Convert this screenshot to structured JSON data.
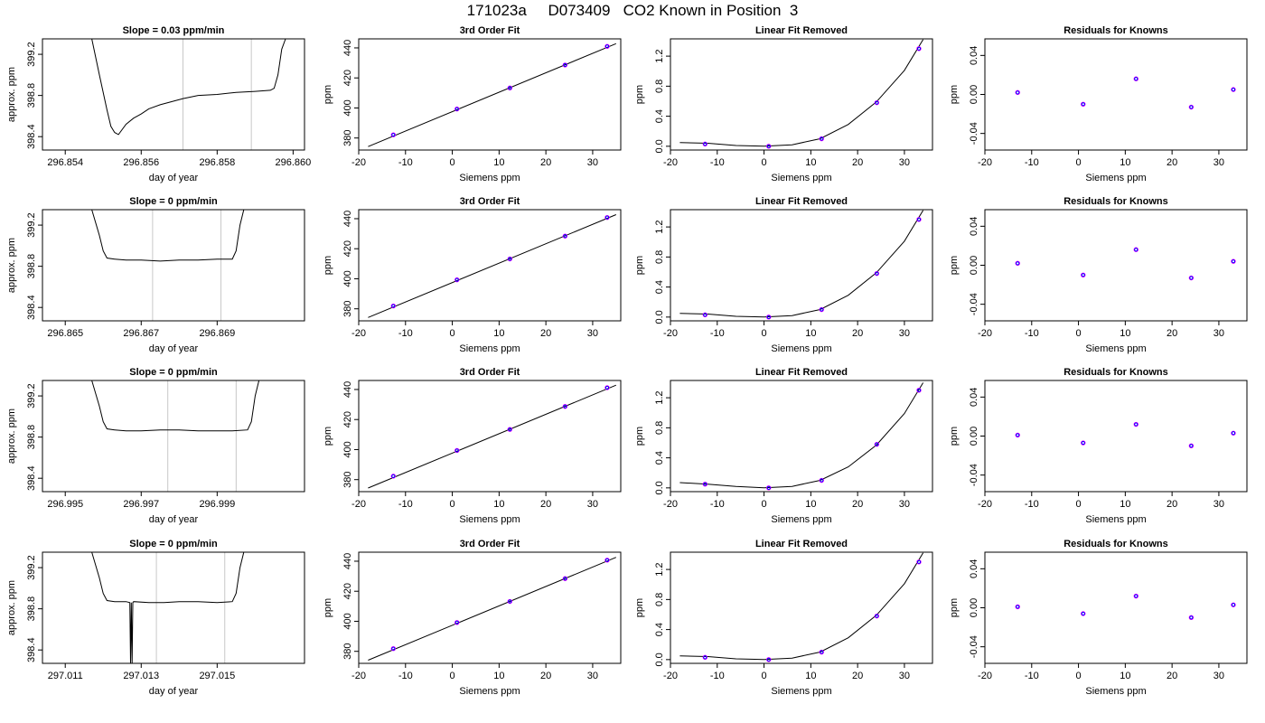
{
  "figure": {
    "title": "171023a     D073409   CO2 Known in Position  3"
  },
  "labels": {
    "day_of_year": "day of year",
    "approx_ppm": "approx. ppm",
    "ppm": "ppm",
    "siemens_ppm": "Siemens ppm",
    "third_order_fit": "3rd Order Fit",
    "linear_fit_removed": "Linear Fit Removed",
    "residuals_for_knowns": "Residuals for Knowns"
  },
  "chart_data": [
    {
      "row": 0,
      "col": 0,
      "type": "line",
      "title": "Slope =  0.03  ppm/min",
      "xlabel": "day of year",
      "ylabel": "approx. ppm",
      "xlim": [
        296.8534,
        296.8603
      ],
      "ylim": [
        398.27,
        399.35
      ],
      "xticks": [
        296.854,
        296.856,
        296.858,
        296.86
      ],
      "xtick_labels": [
        "296.854",
        "296.856",
        "296.858",
        "296.860"
      ],
      "yticks": [
        398.4,
        398.8,
        399.2
      ],
      "ytick_labels": [
        "398.4",
        "398.8",
        "399.2"
      ],
      "vlines": [
        296.8571,
        296.8589
      ],
      "series": [
        {
          "x": [
            296.8547,
            296.8549,
            296.8551,
            296.8552,
            296.8553,
            296.8554,
            296.8556,
            296.8558,
            296.856,
            296.8562,
            296.8565,
            296.8568,
            296.8571,
            296.8575,
            296.858,
            296.8585,
            296.859,
            296.8594,
            296.8595,
            296.8596,
            296.8597,
            296.8598
          ],
          "y": [
            399.4,
            399.0,
            398.66,
            398.5,
            398.44,
            398.42,
            398.52,
            398.58,
            398.62,
            398.67,
            398.71,
            398.74,
            398.77,
            398.8,
            398.81,
            398.83,
            398.84,
            398.85,
            398.87,
            399.0,
            399.25,
            399.4
          ]
        }
      ]
    },
    {
      "row": 0,
      "col": 1,
      "type": "scatter",
      "title": "3rd Order Fit",
      "xlabel": "Siemens ppm",
      "ylabel": "ppm",
      "xlim": [
        -20,
        36
      ],
      "ylim": [
        372,
        446
      ],
      "xticks": [
        -20,
        -10,
        0,
        10,
        20,
        30
      ],
      "xtick_labels": [
        "-20",
        "-10",
        "0",
        "10",
        "20",
        "30"
      ],
      "yticks": [
        380,
        400,
        420,
        440
      ],
      "ytick_labels": [
        "380",
        "400",
        "420",
        "440"
      ],
      "points": {
        "x": [
          -12.6,
          1.0,
          12.3,
          24.1,
          33.1
        ],
        "y": [
          382.1,
          399.3,
          413.3,
          428.6,
          441.0
        ]
      },
      "fit": {
        "x": [
          -18,
          35
        ],
        "y": [
          374.3,
          442.8
        ]
      }
    },
    {
      "row": 0,
      "col": 2,
      "type": "scatter",
      "title": "Linear Fit Removed",
      "xlabel": "Siemens ppm",
      "ylabel": "ppm",
      "xlim": [
        -20,
        36
      ],
      "ylim": [
        -0.05,
        1.43
      ],
      "xticks": [
        -20,
        -10,
        0,
        10,
        20,
        30
      ],
      "xtick_labels": [
        "-20",
        "-10",
        "0",
        "10",
        "20",
        "30"
      ],
      "yticks": [
        0.0,
        0.4,
        0.8,
        1.2
      ],
      "ytick_labels": [
        "0.0",
        "0.4",
        "0.8",
        "1.2"
      ],
      "points": {
        "x": [
          -12.6,
          1.0,
          12.3,
          24.1,
          33.1
        ],
        "y": [
          0.03,
          0.0,
          0.1,
          0.58,
          1.3
        ]
      },
      "fit": {
        "x": [
          -18,
          -12,
          -6,
          0,
          6,
          12,
          18,
          24,
          30,
          34
        ],
        "y": [
          0.05,
          0.04,
          0.01,
          0.0,
          0.02,
          0.1,
          0.29,
          0.59,
          1.01,
          1.42
        ]
      }
    },
    {
      "row": 0,
      "col": 3,
      "type": "scatter",
      "title": "Residuals for Knowns",
      "xlabel": "Siemens ppm",
      "ylabel": "ppm",
      "xlim": [
        -20,
        36
      ],
      "ylim": [
        -0.057,
        0.057
      ],
      "xticks": [
        -20,
        -10,
        0,
        10,
        20,
        30
      ],
      "xtick_labels": [
        "-20",
        "-10",
        "0",
        "10",
        "20",
        "30"
      ],
      "yticks": [
        -0.04,
        0.0,
        0.04
      ],
      "ytick_labels": [
        "-0.04",
        "0.00",
        "0.04"
      ],
      "points": {
        "x": [
          -13.0,
          1.0,
          12.3,
          24.1,
          33.1
        ],
        "y": [
          0.002,
          -0.01,
          0.016,
          -0.013,
          0.005
        ]
      }
    },
    {
      "row": 1,
      "col": 0,
      "type": "line",
      "title": "Slope =  0  ppm/min",
      "xlabel": "day of year",
      "ylabel": "approx. ppm",
      "xlim": [
        296.8644,
        296.8713
      ],
      "ylim": [
        398.27,
        399.35
      ],
      "xticks": [
        296.865,
        296.867,
        296.869
      ],
      "xtick_labels": [
        "296.865",
        "296.867",
        "296.869"
      ],
      "yticks": [
        398.4,
        398.8,
        399.2
      ],
      "ytick_labels": [
        "398.4",
        "398.8",
        "399.2"
      ],
      "vlines": [
        296.8673,
        296.8691
      ],
      "series": [
        {
          "x": [
            296.8657,
            296.8659,
            296.866,
            296.8661,
            296.8663,
            296.8666,
            296.867,
            296.8675,
            296.868,
            296.8685,
            296.869,
            296.8694,
            296.8695,
            296.8696,
            296.8697
          ],
          "y": [
            399.4,
            399.1,
            398.95,
            398.88,
            398.87,
            398.86,
            398.86,
            398.85,
            398.86,
            398.86,
            398.87,
            398.87,
            398.95,
            399.2,
            399.4
          ]
        }
      ]
    },
    {
      "row": 1,
      "col": 1,
      "type": "scatter",
      "title": "3rd Order Fit",
      "xlabel": "Siemens ppm",
      "ylabel": "ppm",
      "xlim": [
        -20,
        36
      ],
      "ylim": [
        372,
        446
      ],
      "xticks": [
        -20,
        -10,
        0,
        10,
        20,
        30
      ],
      "xtick_labels": [
        "-20",
        "-10",
        "0",
        "10",
        "20",
        "30"
      ],
      "yticks": [
        380,
        400,
        420,
        440
      ],
      "ytick_labels": [
        "380",
        "400",
        "420",
        "440"
      ],
      "points": {
        "x": [
          -12.6,
          1.0,
          12.3,
          24.1,
          33.1
        ],
        "y": [
          381.9,
          399.3,
          413.2,
          428.4,
          440.8
        ]
      },
      "fit": {
        "x": [
          -18,
          35
        ],
        "y": [
          374.2,
          442.7
        ]
      }
    },
    {
      "row": 1,
      "col": 2,
      "type": "scatter",
      "title": "Linear Fit Removed",
      "xlabel": "Siemens ppm",
      "ylabel": "ppm",
      "xlim": [
        -20,
        36
      ],
      "ylim": [
        -0.05,
        1.43
      ],
      "xticks": [
        -20,
        -10,
        0,
        10,
        20,
        30
      ],
      "xtick_labels": [
        "-20",
        "-10",
        "0",
        "10",
        "20",
        "30"
      ],
      "yticks": [
        0.0,
        0.4,
        0.8,
        1.2
      ],
      "ytick_labels": [
        "0.0",
        "0.4",
        "0.8",
        "1.2"
      ],
      "points": {
        "x": [
          -12.6,
          1.0,
          12.3,
          24.1,
          33.1
        ],
        "y": [
          0.03,
          0.0,
          0.1,
          0.58,
          1.3
        ]
      },
      "fit": {
        "x": [
          -18,
          -12,
          -6,
          0,
          6,
          12,
          18,
          24,
          30,
          34
        ],
        "y": [
          0.05,
          0.04,
          0.01,
          0.0,
          0.02,
          0.1,
          0.29,
          0.59,
          1.01,
          1.42
        ]
      }
    },
    {
      "row": 1,
      "col": 3,
      "type": "scatter",
      "title": "Residuals for Knowns",
      "xlabel": "Siemens ppm",
      "ylabel": "ppm",
      "xlim": [
        -20,
        36
      ],
      "ylim": [
        -0.057,
        0.057
      ],
      "xticks": [
        -20,
        -10,
        0,
        10,
        20,
        30
      ],
      "xtick_labels": [
        "-20",
        "-10",
        "0",
        "10",
        "20",
        "30"
      ],
      "yticks": [
        -0.04,
        0.0,
        0.04
      ],
      "ytick_labels": [
        "-0.04",
        "0.00",
        "0.04"
      ],
      "points": {
        "x": [
          -13.0,
          1.0,
          12.3,
          24.1,
          33.1
        ],
        "y": [
          0.002,
          -0.01,
          0.016,
          -0.013,
          0.004
        ]
      }
    },
    {
      "row": 2,
      "col": 0,
      "type": "line",
      "title": "Slope =  0  ppm/min",
      "xlabel": "day of year",
      "ylabel": "approx. ppm",
      "xlim": [
        296.9944,
        297.0013
      ],
      "ylim": [
        398.27,
        399.35
      ],
      "xticks": [
        296.995,
        296.997,
        296.999
      ],
      "xtick_labels": [
        "296.995",
        "296.997",
        "296.999"
      ],
      "yticks": [
        398.4,
        398.8,
        399.2
      ],
      "ytick_labels": [
        "398.4",
        "398.8",
        "399.2"
      ],
      "vlines": [
        296.9977,
        296.9995
      ],
      "series": [
        {
          "x": [
            296.9957,
            296.9959,
            296.996,
            296.9961,
            296.9963,
            296.9966,
            296.997,
            296.9975,
            296.998,
            296.9985,
            296.999,
            296.9994,
            296.9998,
            296.9999,
            297.0,
            297.0001
          ],
          "y": [
            399.4,
            399.1,
            398.95,
            398.88,
            398.87,
            398.86,
            398.86,
            398.87,
            398.87,
            398.86,
            398.86,
            398.86,
            398.87,
            398.95,
            399.2,
            399.4
          ]
        }
      ]
    },
    {
      "row": 2,
      "col": 1,
      "type": "scatter",
      "title": "3rd Order Fit",
      "xlabel": "Siemens ppm",
      "ylabel": "ppm",
      "xlim": [
        -20,
        36
      ],
      "ylim": [
        372,
        446
      ],
      "xticks": [
        -20,
        -10,
        0,
        10,
        20,
        30
      ],
      "xtick_labels": [
        "-20",
        "-10",
        "0",
        "10",
        "20",
        "30"
      ],
      "yticks": [
        380,
        400,
        420,
        440
      ],
      "ytick_labels": [
        "380",
        "400",
        "420",
        "440"
      ],
      "points": {
        "x": [
          -12.6,
          1.0,
          12.3,
          24.1,
          33.1
        ],
        "y": [
          382.3,
          399.4,
          413.4,
          428.7,
          441.2
        ]
      },
      "fit": {
        "x": [
          -18,
          35
        ],
        "y": [
          374.4,
          442.9
        ]
      }
    },
    {
      "row": 2,
      "col": 2,
      "type": "scatter",
      "title": "Linear Fit Removed",
      "xlabel": "Siemens ppm",
      "ylabel": "ppm",
      "xlim": [
        -20,
        36
      ],
      "ylim": [
        -0.05,
        1.43
      ],
      "xticks": [
        -20,
        -10,
        0,
        10,
        20,
        30
      ],
      "xtick_labels": [
        "-20",
        "-10",
        "0",
        "10",
        "20",
        "30"
      ],
      "yticks": [
        0.0,
        0.4,
        0.8,
        1.2
      ],
      "ytick_labels": [
        "0.0",
        "0.4",
        "0.8",
        "1.2"
      ],
      "points": {
        "x": [
          -12.6,
          1.0,
          12.3,
          24.1,
          33.1
        ],
        "y": [
          0.05,
          0.0,
          0.1,
          0.58,
          1.3
        ]
      },
      "fit": {
        "x": [
          -18,
          -12,
          -6,
          0,
          6,
          12,
          18,
          24,
          30,
          34
        ],
        "y": [
          0.07,
          0.05,
          0.02,
          0.0,
          0.02,
          0.1,
          0.28,
          0.57,
          0.99,
          1.4
        ]
      }
    },
    {
      "row": 2,
      "col": 3,
      "type": "scatter",
      "title": "Residuals for Knowns",
      "xlabel": "Siemens ppm",
      "ylabel": "ppm",
      "xlim": [
        -20,
        36
      ],
      "ylim": [
        -0.057,
        0.057
      ],
      "xticks": [
        -20,
        -10,
        0,
        10,
        20,
        30
      ],
      "xtick_labels": [
        "-20",
        "-10",
        "0",
        "10",
        "20",
        "30"
      ],
      "yticks": [
        -0.04,
        0.0,
        0.04
      ],
      "ytick_labels": [
        "-0.04",
        "0.00",
        "0.04"
      ],
      "points": {
        "x": [
          -13.0,
          1.0,
          12.3,
          24.1,
          33.1
        ],
        "y": [
          0.001,
          -0.007,
          0.012,
          -0.01,
          0.003
        ]
      }
    },
    {
      "row": 3,
      "col": 0,
      "type": "line",
      "title": "Slope =  0  ppm/min",
      "xlabel": "day of year",
      "ylabel": "approx. ppm",
      "xlim": [
        297.0104,
        297.0173
      ],
      "ylim": [
        398.27,
        399.35
      ],
      "xticks": [
        297.011,
        297.013,
        297.015
      ],
      "xtick_labels": [
        "297.011",
        "297.013",
        "297.015"
      ],
      "yticks": [
        398.4,
        398.8,
        399.2
      ],
      "ytick_labels": [
        "398.4",
        "398.8",
        "399.2"
      ],
      "vlines": [
        297.0134,
        297.0152
      ],
      "series": [
        {
          "x": [
            297.0117,
            297.0119,
            297.012,
            297.0121,
            297.0123,
            297.0126,
            297.0127,
            297.01272,
            297.01274,
            297.01276,
            297.01278,
            297.0128,
            297.0132,
            297.0136,
            297.014,
            297.0145,
            297.015,
            297.0154,
            297.0155,
            297.0156,
            297.0157
          ],
          "y": [
            399.4,
            399.1,
            398.95,
            398.88,
            398.87,
            398.87,
            398.86,
            398.25,
            398.86,
            398.25,
            398.86,
            398.87,
            398.86,
            398.86,
            398.87,
            398.87,
            398.86,
            398.87,
            398.95,
            399.2,
            399.4
          ]
        }
      ]
    },
    {
      "row": 3,
      "col": 1,
      "type": "scatter",
      "title": "3rd Order Fit",
      "xlabel": "Siemens ppm",
      "ylabel": "ppm",
      "xlim": [
        -20,
        36
      ],
      "ylim": [
        372,
        446
      ],
      "xticks": [
        -20,
        -10,
        0,
        10,
        20,
        30
      ],
      "xtick_labels": [
        "-20",
        "-10",
        "0",
        "10",
        "20",
        "30"
      ],
      "yticks": [
        380,
        400,
        420,
        440
      ],
      "ytick_labels": [
        "380",
        "400",
        "420",
        "440"
      ],
      "points": {
        "x": [
          -12.6,
          1.0,
          12.3,
          24.1,
          33.1
        ],
        "y": [
          381.8,
          399.2,
          413.2,
          428.4,
          440.7
        ]
      },
      "fit": {
        "x": [
          -18,
          35
        ],
        "y": [
          374.1,
          442.6
        ]
      }
    },
    {
      "row": 3,
      "col": 2,
      "type": "scatter",
      "title": "Linear Fit Removed",
      "xlabel": "Siemens ppm",
      "ylabel": "ppm",
      "xlim": [
        -20,
        36
      ],
      "ylim": [
        -0.05,
        1.43
      ],
      "xticks": [
        -20,
        -10,
        0,
        10,
        20,
        30
      ],
      "xtick_labels": [
        "-20",
        "-10",
        "0",
        "10",
        "20",
        "30"
      ],
      "yticks": [
        0.0,
        0.4,
        0.8,
        1.2
      ],
      "ytick_labels": [
        "0.0",
        "0.4",
        "0.8",
        "1.2"
      ],
      "points": {
        "x": [
          -12.6,
          1.0,
          12.3,
          24.1,
          33.1
        ],
        "y": [
          0.03,
          0.0,
          0.1,
          0.58,
          1.3
        ]
      },
      "fit": {
        "x": [
          -18,
          -12,
          -6,
          0,
          6,
          12,
          18,
          24,
          30,
          34
        ],
        "y": [
          0.05,
          0.04,
          0.01,
          0.0,
          0.02,
          0.1,
          0.29,
          0.59,
          1.01,
          1.42
        ]
      }
    },
    {
      "row": 3,
      "col": 3,
      "type": "scatter",
      "title": "Residuals for Knowns",
      "xlabel": "Siemens ppm",
      "ylabel": "ppm",
      "xlim": [
        -20,
        36
      ],
      "ylim": [
        -0.057,
        0.057
      ],
      "xticks": [
        -20,
        -10,
        0,
        10,
        20,
        30
      ],
      "xtick_labels": [
        "-20",
        "-10",
        "0",
        "10",
        "20",
        "30"
      ],
      "yticks": [
        -0.04,
        0.0,
        0.04
      ],
      "ytick_labels": [
        "-0.04",
        "0.00",
        "0.04"
      ],
      "points": {
        "x": [
          -13.0,
          1.0,
          12.3,
          24.1,
          33.1
        ],
        "y": [
          0.001,
          -0.006,
          0.012,
          -0.01,
          0.003
        ]
      }
    }
  ]
}
